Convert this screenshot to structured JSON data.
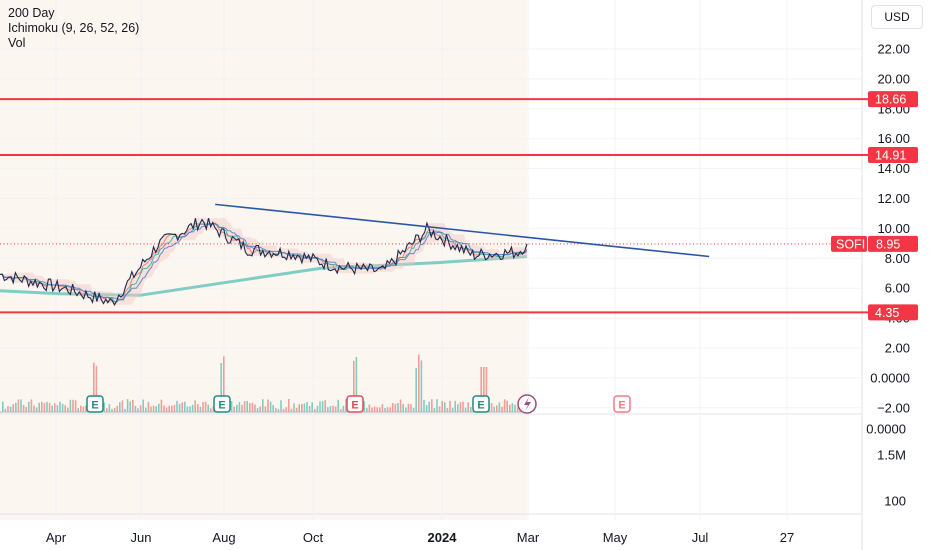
{
  "legend": {
    "line1": "200 Day",
    "line2": "Ichimoku (9, 26, 52, 26)",
    "line3": "Vol"
  },
  "currency": "USD",
  "colors": {
    "hline": "#f23645",
    "trendline": "#2a56a8",
    "ma200": "#7fcdc4",
    "price": "#1b2a4e",
    "volume_up": "#26a69a",
    "volume_down": "#ef5350",
    "earnings": "#1f8a7e",
    "earnings_future": "#f07c86"
  },
  "chart_data": {
    "type": "line",
    "symbol": "SOFI",
    "last_price": 8.95,
    "y_axis_ticks": [
      "22.00",
      "20.00",
      "18.00",
      "16.00",
      "14.00",
      "12.00",
      "10.00",
      "8.00",
      "6.00",
      "4.00",
      "2.00",
      "0.0000",
      "−2.00"
    ],
    "lower_axis_ticks": [
      "0.0000",
      "1.5M",
      "100"
    ],
    "x_axis_ticks": [
      "Apr",
      "Jun",
      "Aug",
      "Oct",
      "2024",
      "Mar",
      "May",
      "Jul",
      "27"
    ],
    "horizontal_levels": [
      {
        "value": 18.66,
        "label": "18.66"
      },
      {
        "value": 14.91,
        "label": "14.91"
      },
      {
        "value": 4.35,
        "label": "4.35"
      }
    ],
    "price_label": {
      "symbol": "SOFI",
      "value": "8.95"
    },
    "trendline": {
      "start": {
        "date": "2023-07-24",
        "value": 11.6
      },
      "end": {
        "date": "2024-06-24",
        "value": 8.1
      }
    },
    "series": [
      {
        "values_by_month": [
          {
            "date": "2023-03",
            "value": 6.9
          },
          {
            "date": "2023-04",
            "value": 5.9
          },
          {
            "date": "2023-05",
            "value": 5.0
          },
          {
            "date": "2023-06",
            "value": 8.9
          },
          {
            "date": "2023-07",
            "value": 10.5
          },
          {
            "date": "2023-08",
            "value": 8.6
          },
          {
            "date": "2023-09",
            "value": 8.3
          },
          {
            "date": "2023-10",
            "value": 7.4
          },
          {
            "date": "2023-11",
            "value": 7.1
          },
          {
            "date": "2023-12",
            "value": 9.9
          },
          {
            "date": "2024-01",
            "value": 8.2
          },
          {
            "date": "2024-02",
            "value": 8.4
          },
          {
            "date": "2024-03",
            "value": 8.95
          }
        ]
      }
    ],
    "earnings_markers": [
      "E",
      "E",
      "E",
      "E",
      "E"
    ]
  }
}
